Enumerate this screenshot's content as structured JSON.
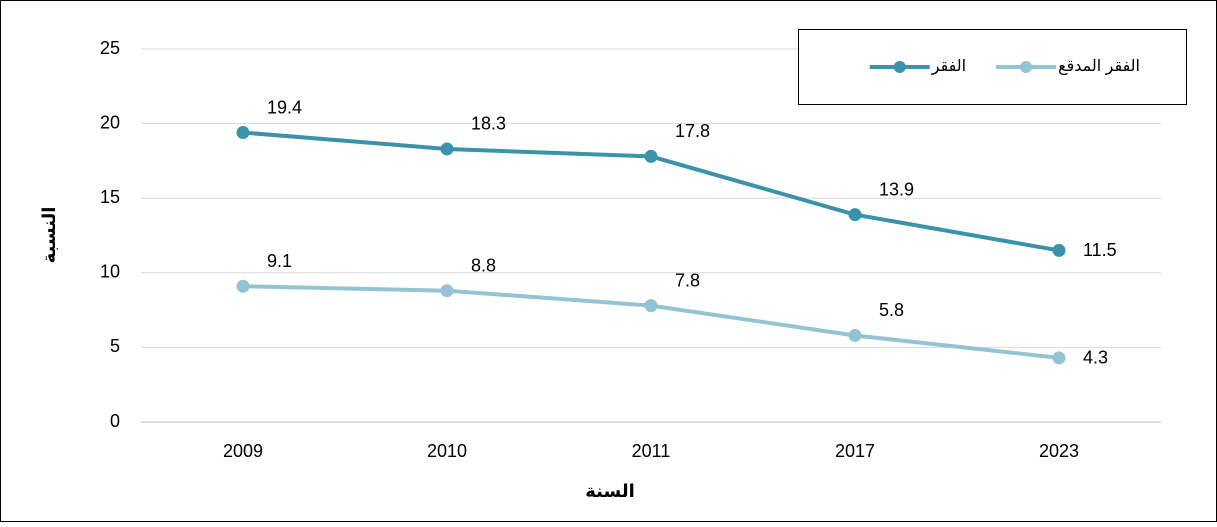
{
  "chart_data": {
    "type": "line",
    "categories": [
      "2009",
      "2010",
      "2011",
      "2017",
      "2023"
    ],
    "series": [
      {
        "name": "الفقر",
        "color": "#3a93a8",
        "values": [
          19.4,
          18.3,
          17.8,
          13.9,
          11.5
        ]
      },
      {
        "name": "الفقر المدقع",
        "color": "#93c4d4",
        "values": [
          9.1,
          8.8,
          7.8,
          5.8,
          4.3
        ]
      }
    ],
    "xlabel": "السنة",
    "ylabel": "النسبة",
    "ylim": [
      0,
      25
    ],
    "yticks": [
      0,
      5,
      10,
      15,
      20,
      25
    ],
    "grid": true,
    "legend": "upper right"
  }
}
